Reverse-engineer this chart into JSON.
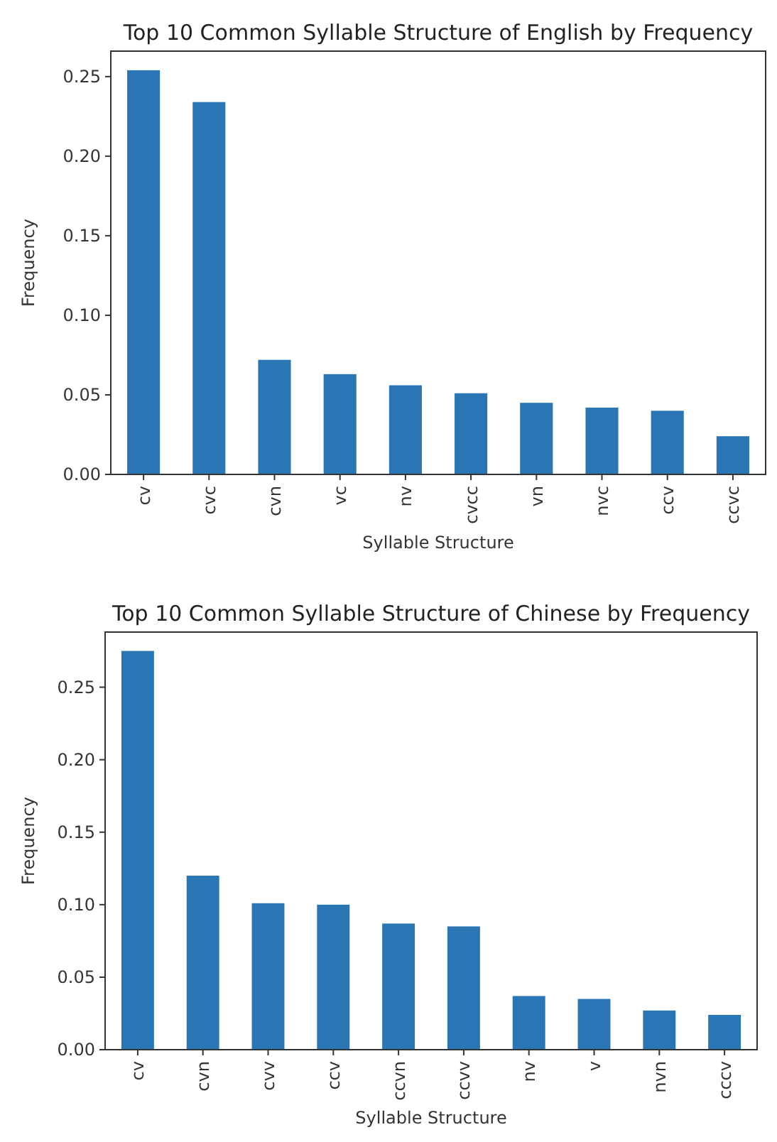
{
  "chart_data": [
    {
      "type": "bar",
      "title": "Top 10 Common Syllable Structure of English by Frequency",
      "xlabel": "Syllable Structure",
      "ylabel": "Frequency",
      "categories": [
        "cv",
        "cvc",
        "cvn",
        "vc",
        "nv",
        "cvcc",
        "vn",
        "nvc",
        "ccv",
        "ccvc"
      ],
      "values": [
        0.254,
        0.234,
        0.072,
        0.063,
        0.056,
        0.051,
        0.045,
        0.042,
        0.04,
        0.024
      ],
      "color": "#2a75b3",
      "ylim": [
        0,
        0.266
      ],
      "yticks": [
        {
          "value": 0,
          "label": "0.00"
        },
        {
          "value": 0.05,
          "label": "0.05"
        },
        {
          "value": 0.1,
          "label": "0.10"
        },
        {
          "value": 0.15,
          "label": "0.15"
        },
        {
          "value": 0.2,
          "label": "0.20"
        },
        {
          "value": 0.25,
          "label": "0.25"
        }
      ],
      "grid": false
    },
    {
      "type": "bar",
      "title": "Top 10 Common Syllable Structure of Chinese by Frequency",
      "xlabel": "Syllable Structure",
      "ylabel": "Frequency",
      "categories": [
        "cv",
        "cvn",
        "cvv",
        "ccv",
        "ccvn",
        "ccvv",
        "nv",
        "v",
        "nvn",
        "cccv"
      ],
      "values": [
        0.275,
        0.12,
        0.101,
        0.1,
        0.087,
        0.085,
        0.037,
        0.035,
        0.027,
        0.024
      ],
      "color": "#2a75b3",
      "ylim": [
        0,
        0.288
      ],
      "yticks": [
        {
          "value": 0,
          "label": "0.00"
        },
        {
          "value": 0.05,
          "label": "0.05"
        },
        {
          "value": 0.1,
          "label": "0.10"
        },
        {
          "value": 0.15,
          "label": "0.15"
        },
        {
          "value": 0.2,
          "label": "0.20"
        },
        {
          "value": 0.25,
          "label": "0.25"
        }
      ],
      "grid": false
    }
  ]
}
